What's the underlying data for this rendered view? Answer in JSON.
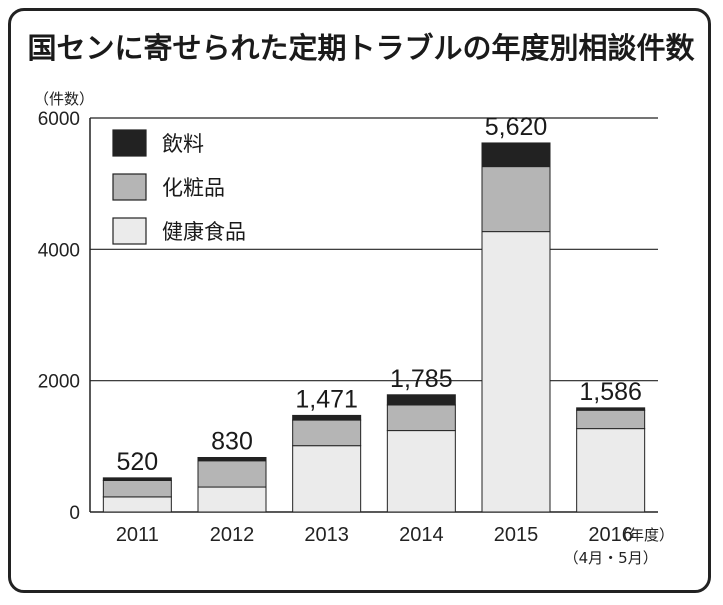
{
  "chart_data": {
    "type": "bar",
    "stacked": true,
    "title": "国センに寄せられた定期トラブルの年度別相談件数",
    "yunit": "（件数）",
    "xunit": "（年度）",
    "categories": [
      "2011",
      "2012",
      "2013",
      "2014",
      "2015",
      "2016"
    ],
    "category_notes": [
      "",
      "",
      "",
      "",
      "",
      "（4月・5月）"
    ],
    "ylim": [
      0,
      6000
    ],
    "yticks": [
      0,
      2000,
      4000,
      6000
    ],
    "gridlines": true,
    "legend_position": "top-left",
    "totals": [
      520,
      830,
      1471,
      1785,
      5620,
      1586
    ],
    "total_labels": [
      "520",
      "830",
      "1,471",
      "1,785",
      "5,620",
      "1,586"
    ],
    "series": [
      {
        "name": "健康食品",
        "color": "#ebebeb",
        "values": [
          230,
          380,
          1010,
          1240,
          4270,
          1270
        ]
      },
      {
        "name": "化粧品",
        "color": "#b5b5b5",
        "values": [
          250,
          400,
          390,
          390,
          990,
          280
        ]
      },
      {
        "name": "飲料",
        "color": "#222222",
        "values": [
          40,
          50,
          71,
          155,
          360,
          36
        ]
      }
    ],
    "legend_order": [
      2,
      1,
      0
    ]
  }
}
